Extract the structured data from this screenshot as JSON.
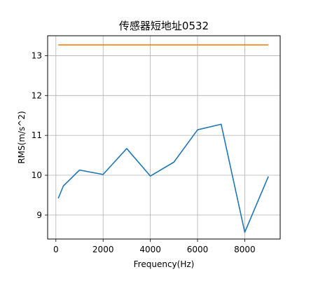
{
  "chart_data": {
    "type": "line",
    "title": "传感器短地址0532",
    "xlabel": "Frequency(Hz)",
    "ylabel": "RMS(m/s^2)",
    "xlim": [
      -350,
      9500
    ],
    "ylim": [
      8.4,
      13.5
    ],
    "xticks": [
      0,
      2000,
      4000,
      6000,
      8000
    ],
    "yticks": [
      9,
      10,
      11,
      12,
      13
    ],
    "grid": true,
    "series": [
      {
        "color": "#1f77b4",
        "x": [
          100,
          315,
          1000,
          2000,
          3000,
          4000,
          5000,
          6000,
          7000,
          8000,
          9000
        ],
        "values": [
          9.42,
          9.73,
          10.13,
          10.02,
          10.67,
          9.98,
          10.33,
          11.14,
          11.28,
          8.57,
          9.97
        ]
      },
      {
        "color": "#ff7f0e",
        "x": [
          100,
          9000
        ],
        "values": [
          13.27,
          13.27
        ]
      }
    ]
  }
}
